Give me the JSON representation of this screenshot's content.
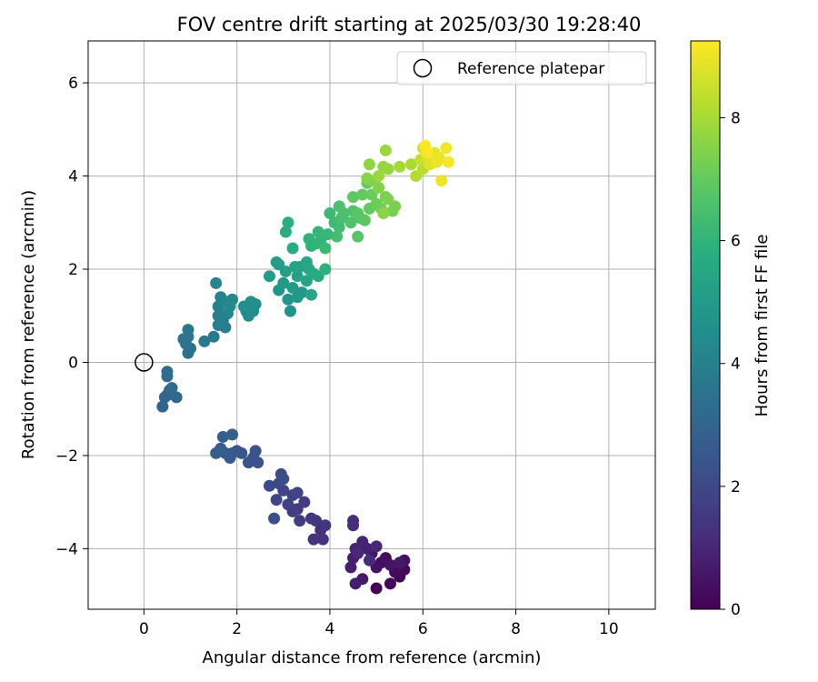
{
  "chart_data": {
    "type": "scatter",
    "title": "FOV centre drift starting at 2025/03/30 19:28:40",
    "xlabel": "Angular distance from reference (arcmin)",
    "ylabel": "Rotation from reference (arcmin)",
    "xlim": [
      -1.2,
      11.0
    ],
    "ylim": [
      -5.3,
      6.9
    ],
    "xticks": [
      0,
      2,
      4,
      6,
      8,
      10
    ],
    "xtick_labels": [
      "0",
      "2",
      "4",
      "6",
      "8",
      "10"
    ],
    "yticks": [
      -4,
      -2,
      0,
      2,
      4,
      6
    ],
    "ytick_labels": [
      "−4",
      "−2",
      "0",
      "2",
      "4",
      "6"
    ],
    "grid": true,
    "legend": {
      "position": "top-right",
      "entries": [
        "Reference platepar"
      ]
    },
    "reference_point": {
      "x": 0.0,
      "y": 0.0
    },
    "colorbar": {
      "label": "Hours from first FF file",
      "range": [
        0,
        9.25
      ],
      "ticks": [
        0,
        2,
        4,
        6,
        8
      ],
      "tick_labels": [
        "0",
        "2",
        "4",
        "6",
        "8"
      ],
      "colormap": "viridis"
    },
    "points": [
      {
        "x": 5.0,
        "y": -4.85,
        "h": 0.05
      },
      {
        "x": 5.5,
        "y": -4.6,
        "h": 0.1
      },
      {
        "x": 5.3,
        "y": -4.75,
        "h": 0.15
      },
      {
        "x": 5.6,
        "y": -4.45,
        "h": 0.2
      },
      {
        "x": 5.1,
        "y": -4.3,
        "h": 0.25
      },
      {
        "x": 5.4,
        "y": -4.5,
        "h": 0.3
      },
      {
        "x": 5.2,
        "y": -4.2,
        "h": 0.35
      },
      {
        "x": 5.6,
        "y": -4.25,
        "h": 0.4
      },
      {
        "x": 5.0,
        "y": -4.4,
        "h": 0.45
      },
      {
        "x": 5.3,
        "y": -4.35,
        "h": 0.5
      },
      {
        "x": 4.9,
        "y": -4.1,
        "h": 0.55
      },
      {
        "x": 5.5,
        "y": -4.3,
        "h": 0.6
      },
      {
        "x": 4.7,
        "y": -4.65,
        "h": 0.65
      },
      {
        "x": 4.55,
        "y": -4.75,
        "h": 0.7
      },
      {
        "x": 4.5,
        "y": -4.2,
        "h": 0.75
      },
      {
        "x": 4.45,
        "y": -4.4,
        "h": 0.8
      },
      {
        "x": 4.8,
        "y": -4.0,
        "h": 0.85
      },
      {
        "x": 4.7,
        "y": -3.85,
        "h": 0.9
      },
      {
        "x": 4.55,
        "y": -4.0,
        "h": 0.95
      },
      {
        "x": 5.0,
        "y": -3.95,
        "h": 1.0
      },
      {
        "x": 4.6,
        "y": -4.1,
        "h": 1.05
      },
      {
        "x": 4.85,
        "y": -4.25,
        "h": 1.1
      },
      {
        "x": 4.5,
        "y": -3.4,
        "h": 1.15
      },
      {
        "x": 4.5,
        "y": -3.5,
        "h": 1.2
      },
      {
        "x": 3.8,
        "y": -3.6,
        "h": 1.25
      },
      {
        "x": 3.85,
        "y": -3.8,
        "h": 1.3
      },
      {
        "x": 3.65,
        "y": -3.8,
        "h": 1.35
      },
      {
        "x": 3.9,
        "y": -3.5,
        "h": 1.4
      },
      {
        "x": 3.7,
        "y": -3.4,
        "h": 1.45
      },
      {
        "x": 3.6,
        "y": -3.35,
        "h": 1.5
      },
      {
        "x": 3.35,
        "y": -3.4,
        "h": 1.55
      },
      {
        "x": 3.3,
        "y": -3.15,
        "h": 1.6
      },
      {
        "x": 3.45,
        "y": -3.0,
        "h": 1.65
      },
      {
        "x": 3.2,
        "y": -3.2,
        "h": 1.7
      },
      {
        "x": 3.1,
        "y": -3.05,
        "h": 1.75
      },
      {
        "x": 3.2,
        "y": -2.85,
        "h": 1.8
      },
      {
        "x": 3.0,
        "y": -2.75,
        "h": 1.85
      },
      {
        "x": 3.3,
        "y": -2.8,
        "h": 1.9
      },
      {
        "x": 2.85,
        "y": -2.95,
        "h": 1.95
      },
      {
        "x": 2.9,
        "y": -2.6,
        "h": 2.0
      },
      {
        "x": 2.7,
        "y": -2.65,
        "h": 2.05
      },
      {
        "x": 2.95,
        "y": -2.4,
        "h": 2.1
      },
      {
        "x": 3.0,
        "y": -2.5,
        "h": 2.15
      },
      {
        "x": 2.8,
        "y": -3.35,
        "h": 2.2
      },
      {
        "x": 2.45,
        "y": -2.15,
        "h": 2.25
      },
      {
        "x": 2.35,
        "y": -2.05,
        "h": 2.3
      },
      {
        "x": 2.4,
        "y": -1.9,
        "h": 2.35
      },
      {
        "x": 2.25,
        "y": -2.15,
        "h": 2.4
      },
      {
        "x": 2.1,
        "y": -1.95,
        "h": 2.45
      },
      {
        "x": 2.0,
        "y": -1.9,
        "h": 2.5
      },
      {
        "x": 1.9,
        "y": -1.95,
        "h": 2.55
      },
      {
        "x": 1.85,
        "y": -2.05,
        "h": 2.6
      },
      {
        "x": 1.75,
        "y": -1.95,
        "h": 2.65
      },
      {
        "x": 1.65,
        "y": -1.85,
        "h": 2.7
      },
      {
        "x": 1.55,
        "y": -1.95,
        "h": 2.75
      },
      {
        "x": 1.7,
        "y": -1.6,
        "h": 2.8
      },
      {
        "x": 1.9,
        "y": -1.55,
        "h": 2.85
      },
      {
        "x": 0.4,
        "y": -0.95,
        "h": 2.95
      },
      {
        "x": 0.45,
        "y": -0.75,
        "h": 3.0
      },
      {
        "x": 0.5,
        "y": -0.7,
        "h": 3.05
      },
      {
        "x": 0.55,
        "y": -0.6,
        "h": 3.1
      },
      {
        "x": 0.7,
        "y": -0.75,
        "h": 3.15
      },
      {
        "x": 0.6,
        "y": -0.55,
        "h": 3.2
      },
      {
        "x": 0.5,
        "y": -0.3,
        "h": 3.25
      },
      {
        "x": 0.5,
        "y": -0.2,
        "h": 3.3
      },
      {
        "x": 0.95,
        "y": 0.2,
        "h": 3.4
      },
      {
        "x": 1.0,
        "y": 0.3,
        "h": 3.45
      },
      {
        "x": 0.85,
        "y": 0.5,
        "h": 3.5
      },
      {
        "x": 0.9,
        "y": 0.4,
        "h": 3.55
      },
      {
        "x": 0.95,
        "y": 0.55,
        "h": 3.6
      },
      {
        "x": 0.95,
        "y": 0.7,
        "h": 3.65
      },
      {
        "x": 1.3,
        "y": 0.45,
        "h": 3.7
      },
      {
        "x": 1.5,
        "y": 0.55,
        "h": 3.75
      },
      {
        "x": 1.6,
        "y": 0.8,
        "h": 3.8
      },
      {
        "x": 1.75,
        "y": 0.75,
        "h": 3.85
      },
      {
        "x": 1.6,
        "y": 1.0,
        "h": 3.9
      },
      {
        "x": 1.7,
        "y": 0.9,
        "h": 3.95
      },
      {
        "x": 1.6,
        "y": 1.2,
        "h": 4.0
      },
      {
        "x": 1.8,
        "y": 1.05,
        "h": 4.05
      },
      {
        "x": 1.65,
        "y": 1.4,
        "h": 4.1
      },
      {
        "x": 1.75,
        "y": 1.3,
        "h": 4.15
      },
      {
        "x": 1.55,
        "y": 1.7,
        "h": 4.2
      },
      {
        "x": 1.9,
        "y": 1.35,
        "h": 4.25
      },
      {
        "x": 1.85,
        "y": 1.2,
        "h": 4.3
      },
      {
        "x": 2.2,
        "y": 1.1,
        "h": 4.35
      },
      {
        "x": 2.25,
        "y": 1.0,
        "h": 4.4
      },
      {
        "x": 2.35,
        "y": 1.1,
        "h": 4.45
      },
      {
        "x": 2.3,
        "y": 1.3,
        "h": 4.5
      },
      {
        "x": 2.4,
        "y": 1.25,
        "h": 4.55
      },
      {
        "x": 2.15,
        "y": 1.2,
        "h": 4.6
      },
      {
        "x": 3.15,
        "y": 1.1,
        "h": 4.7
      },
      {
        "x": 3.1,
        "y": 1.35,
        "h": 4.75
      },
      {
        "x": 2.9,
        "y": 1.55,
        "h": 4.8
      },
      {
        "x": 3.3,
        "y": 1.4,
        "h": 4.85
      },
      {
        "x": 3.4,
        "y": 1.5,
        "h": 4.9
      },
      {
        "x": 3.0,
        "y": 1.7,
        "h": 4.95
      },
      {
        "x": 3.2,
        "y": 1.6,
        "h": 5.0
      },
      {
        "x": 2.7,
        "y": 1.85,
        "h": 5.05
      },
      {
        "x": 2.9,
        "y": 2.1,
        "h": 5.1
      },
      {
        "x": 2.85,
        "y": 2.15,
        "h": 5.15
      },
      {
        "x": 3.05,
        "y": 1.95,
        "h": 5.2
      },
      {
        "x": 3.3,
        "y": 1.85,
        "h": 5.25
      },
      {
        "x": 3.35,
        "y": 2.05,
        "h": 5.3
      },
      {
        "x": 3.25,
        "y": 2.05,
        "h": 5.35
      },
      {
        "x": 3.5,
        "y": 1.75,
        "h": 5.4
      },
      {
        "x": 3.6,
        "y": 1.45,
        "h": 5.45
      },
      {
        "x": 3.5,
        "y": 2.15,
        "h": 5.5
      },
      {
        "x": 3.55,
        "y": 2.0,
        "h": 5.55
      },
      {
        "x": 3.75,
        "y": 1.85,
        "h": 5.6
      },
      {
        "x": 3.65,
        "y": 1.9,
        "h": 5.65
      },
      {
        "x": 3.2,
        "y": 2.45,
        "h": 5.7
      },
      {
        "x": 3.05,
        "y": 2.8,
        "h": 5.75
      },
      {
        "x": 3.1,
        "y": 3.0,
        "h": 5.8
      },
      {
        "x": 3.9,
        "y": 2.0,
        "h": 5.85
      },
      {
        "x": 3.6,
        "y": 2.5,
        "h": 5.9
      },
      {
        "x": 3.55,
        "y": 2.65,
        "h": 5.95
      },
      {
        "x": 3.7,
        "y": 2.55,
        "h": 6.0
      },
      {
        "x": 3.8,
        "y": 2.6,
        "h": 6.05
      },
      {
        "x": 3.75,
        "y": 2.8,
        "h": 6.1
      },
      {
        "x": 3.95,
        "y": 2.75,
        "h": 6.15
      },
      {
        "x": 3.9,
        "y": 2.45,
        "h": 6.2
      },
      {
        "x": 4.0,
        "y": 3.2,
        "h": 6.25
      },
      {
        "x": 4.1,
        "y": 3.0,
        "h": 6.3
      },
      {
        "x": 4.2,
        "y": 2.9,
        "h": 6.35
      },
      {
        "x": 4.15,
        "y": 2.7,
        "h": 6.4
      },
      {
        "x": 4.25,
        "y": 3.1,
        "h": 6.45
      },
      {
        "x": 4.3,
        "y": 3.2,
        "h": 6.5
      },
      {
        "x": 4.2,
        "y": 3.35,
        "h": 6.55
      },
      {
        "x": 4.5,
        "y": 3.25,
        "h": 6.6
      },
      {
        "x": 4.45,
        "y": 3.0,
        "h": 6.65
      },
      {
        "x": 4.65,
        "y": 3.1,
        "h": 6.7
      },
      {
        "x": 4.6,
        "y": 2.7,
        "h": 6.75
      },
      {
        "x": 4.6,
        "y": 3.2,
        "h": 6.8
      },
      {
        "x": 4.75,
        "y": 3.05,
        "h": 6.85
      },
      {
        "x": 4.5,
        "y": 3.55,
        "h": 6.9
      },
      {
        "x": 4.85,
        "y": 3.3,
        "h": 6.95
      },
      {
        "x": 4.7,
        "y": 3.6,
        "h": 7.0
      },
      {
        "x": 4.8,
        "y": 3.85,
        "h": 7.05
      },
      {
        "x": 4.9,
        "y": 3.6,
        "h": 7.1
      },
      {
        "x": 5.0,
        "y": 3.4,
        "h": 7.15
      },
      {
        "x": 5.1,
        "y": 3.3,
        "h": 7.2
      },
      {
        "x": 5.2,
        "y": 3.55,
        "h": 7.25
      },
      {
        "x": 5.35,
        "y": 3.25,
        "h": 7.3
      },
      {
        "x": 5.4,
        "y": 3.35,
        "h": 7.35
      },
      {
        "x": 5.25,
        "y": 3.5,
        "h": 7.4
      },
      {
        "x": 4.95,
        "y": 3.9,
        "h": 7.45
      },
      {
        "x": 5.05,
        "y": 3.75,
        "h": 7.5
      },
      {
        "x": 4.8,
        "y": 3.95,
        "h": 7.55
      },
      {
        "x": 5.15,
        "y": 3.2,
        "h": 7.6
      },
      {
        "x": 4.85,
        "y": 4.25,
        "h": 7.65
      },
      {
        "x": 5.15,
        "y": 4.2,
        "h": 7.7
      },
      {
        "x": 5.25,
        "y": 4.15,
        "h": 7.75
      },
      {
        "x": 5.2,
        "y": 4.55,
        "h": 7.8
      },
      {
        "x": 5.05,
        "y": 4.0,
        "h": 7.85
      },
      {
        "x": 5.5,
        "y": 4.2,
        "h": 7.95
      },
      {
        "x": 5.75,
        "y": 4.25,
        "h": 8.05
      },
      {
        "x": 5.85,
        "y": 4.0,
        "h": 8.15
      },
      {
        "x": 6.0,
        "y": 4.15,
        "h": 8.3
      },
      {
        "x": 5.95,
        "y": 4.35,
        "h": 8.45
      },
      {
        "x": 6.1,
        "y": 4.4,
        "h": 8.6
      },
      {
        "x": 6.0,
        "y": 4.6,
        "h": 8.7
      },
      {
        "x": 6.15,
        "y": 4.25,
        "h": 8.8
      },
      {
        "x": 6.2,
        "y": 4.35,
        "h": 8.85
      },
      {
        "x": 6.25,
        "y": 4.5,
        "h": 8.9
      },
      {
        "x": 6.35,
        "y": 4.4,
        "h": 8.95
      },
      {
        "x": 6.3,
        "y": 4.3,
        "h": 9.0
      },
      {
        "x": 6.4,
        "y": 3.9,
        "h": 9.05
      },
      {
        "x": 6.5,
        "y": 4.6,
        "h": 9.1
      },
      {
        "x": 6.55,
        "y": 4.3,
        "h": 9.15
      },
      {
        "x": 6.05,
        "y": 4.65,
        "h": 9.2
      },
      {
        "x": 6.1,
        "y": 4.5,
        "h": 9.22
      }
    ]
  }
}
